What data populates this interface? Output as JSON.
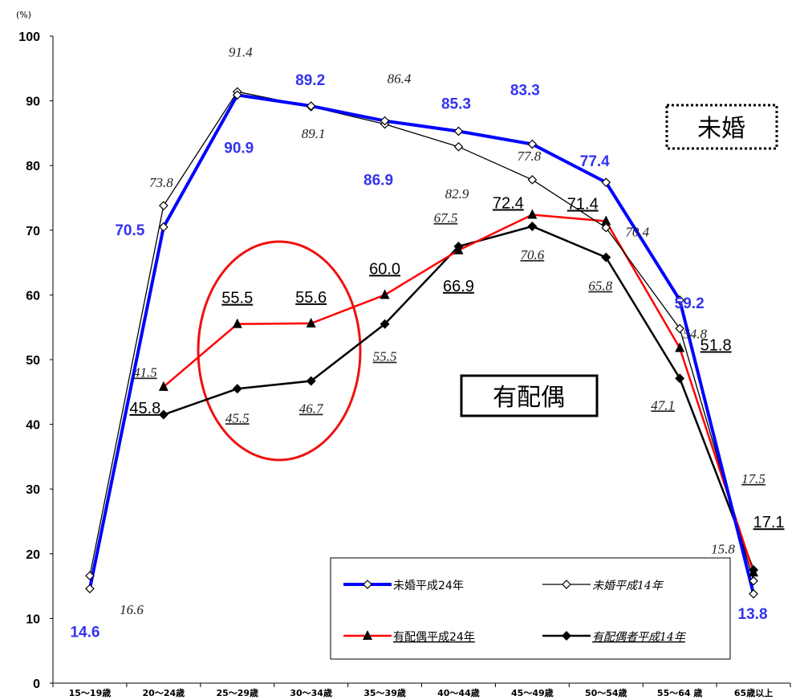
{
  "chart_data": {
    "type": "line",
    "unit": "(%)",
    "ylim": [
      0,
      100
    ],
    "yticks": [
      "0",
      "10",
      "20",
      "30",
      "40",
      "50",
      "60",
      "70",
      "80",
      "90",
      "100"
    ],
    "categories": [
      "15～19歳",
      "20～24歳",
      "25～29歳",
      "30～34歳",
      "35～39歳",
      "40～44歳",
      "45～49歳",
      "50～54歳",
      "55～64 歳",
      "65歳以上"
    ],
    "series": [
      {
        "name": "未婚平成24年",
        "values": [
          14.6,
          70.5,
          90.9,
          89.2,
          86.9,
          85.3,
          83.3,
          77.4,
          59.2,
          13.8
        ],
        "color": "#0000ff",
        "marker": "diamond-open"
      },
      {
        "name": "未婚平成14年",
        "values": [
          16.6,
          73.8,
          91.4,
          89.1,
          86.4,
          82.9,
          77.8,
          70.4,
          54.8,
          15.8
        ],
        "color": "#000000",
        "marker": "diamond-open"
      },
      {
        "name": "有配偶平成24年",
        "values": [
          null,
          45.8,
          55.5,
          55.6,
          60.0,
          66.9,
          72.4,
          71.4,
          51.8,
          17.1
        ],
        "color": "#ff0000",
        "marker": "triangle"
      },
      {
        "name": "有配偶者平成14年",
        "values": [
          null,
          41.5,
          45.5,
          46.7,
          55.5,
          67.5,
          70.6,
          65.8,
          47.1,
          17.5
        ],
        "color": "#000000",
        "marker": "diamond-filled"
      }
    ],
    "annotations": {
      "box_unmarried": "未婚",
      "box_married": "有配偶"
    },
    "legend_position": "bottom-right"
  }
}
